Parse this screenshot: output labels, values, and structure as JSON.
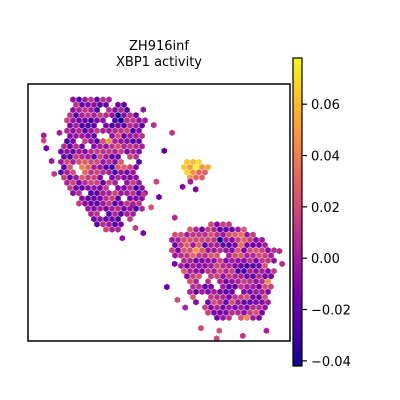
{
  "chart_data": {
    "type": "scatter",
    "title": [
      "ZH916inf",
      "XBP1 activity"
    ],
    "xlabel": "",
    "ylabel": "",
    "colormap": "plasma",
    "colorbar": {
      "vmin": -0.042,
      "vmax": 0.078,
      "ticks": [
        -0.04,
        -0.02,
        0.0,
        0.02,
        0.04,
        0.06
      ],
      "tick_labels": [
        "−0.04",
        "−0.02",
        "0.00",
        "0.02",
        "0.04",
        "0.06"
      ]
    },
    "grid": false,
    "axis_ticks": false,
    "point_shape": "hexagon",
    "regions": [
      {
        "name": "upper-left tissue",
        "x_range": [
          0.05,
          0.48
        ],
        "y_range": [
          0.06,
          0.6
        ],
        "mean_value": -0.005
      },
      {
        "name": "small central cluster",
        "x_range": [
          0.58,
          0.7
        ],
        "y_range": [
          0.29,
          0.37
        ],
        "mean_value": 0.045
      },
      {
        "name": "lower-right tissue",
        "x_range": [
          0.52,
          0.96
        ],
        "y_range": [
          0.56,
          0.93
        ],
        "mean_value": 0.002
      }
    ]
  }
}
